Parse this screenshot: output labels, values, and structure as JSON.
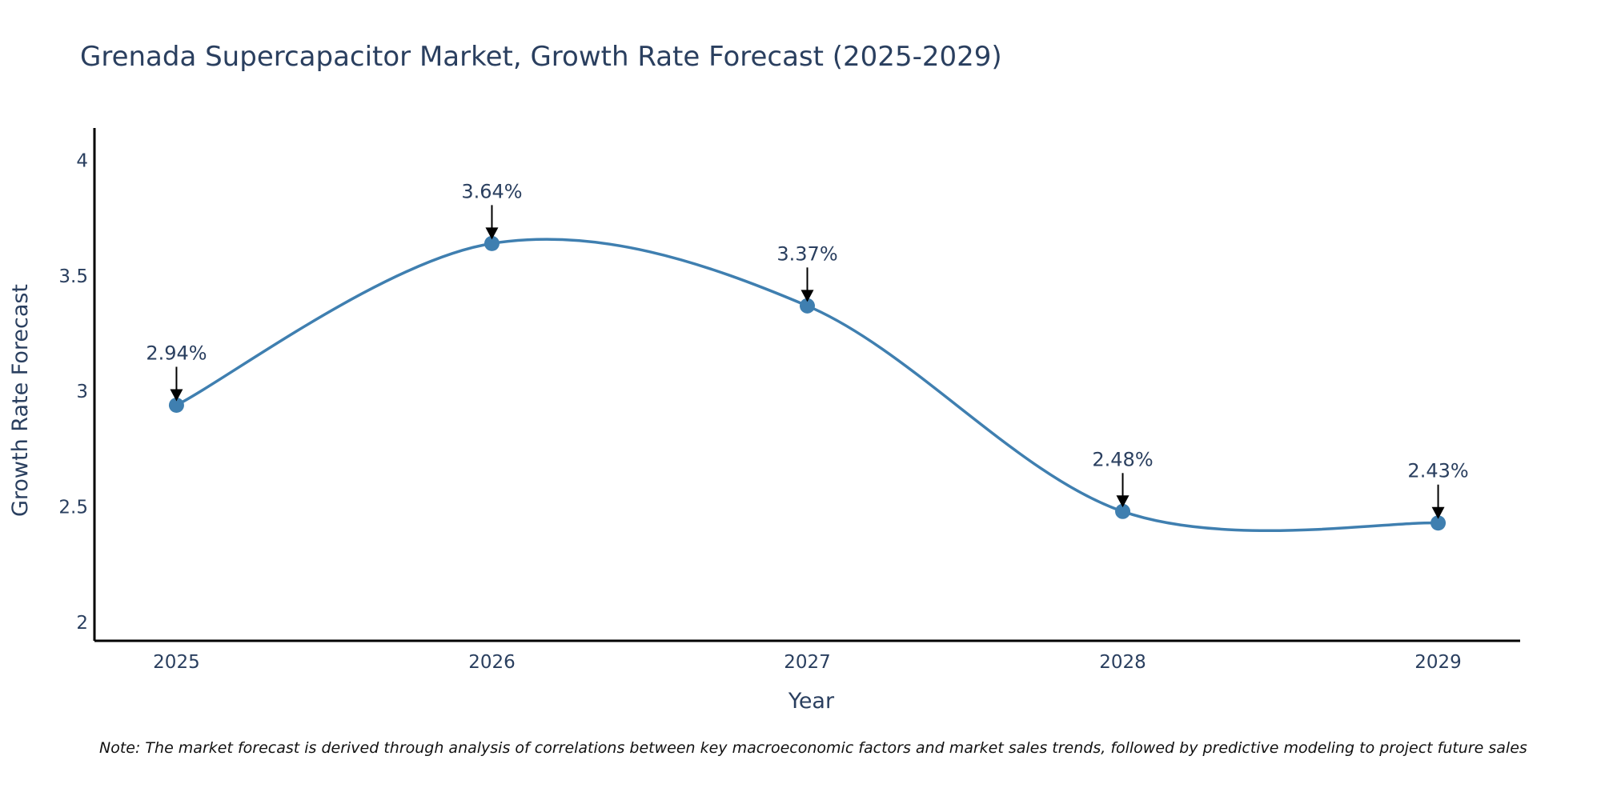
{
  "chart_data": {
    "type": "line",
    "title": "Grenada Supercapacitor Market, Growth Rate Forecast (2025-2029)",
    "xlabel": "Year",
    "ylabel": "Growth Rate Forecast",
    "categories": [
      "2025",
      "2026",
      "2027",
      "2028",
      "2029"
    ],
    "x": [
      2025,
      2026,
      2027,
      2028,
      2029
    ],
    "series": [
      {
        "name": "Growth Rate Forecast",
        "values": [
          2.94,
          3.64,
          3.37,
          2.48,
          2.43
        ],
        "labels": [
          "2.94%",
          "3.64%",
          "3.37%",
          "2.48%",
          "2.43%"
        ],
        "color": "#3f7fb0",
        "line_shape": "spline",
        "markers": true
      }
    ],
    "yticks": [
      2,
      2.5,
      3,
      3.5,
      4
    ],
    "ytick_labels": [
      "2",
      "2.5",
      "3",
      "3.5",
      "4"
    ],
    "xticks": [
      2025,
      2026,
      2027,
      2028,
      2029
    ],
    "xtick_labels": [
      "2025",
      "2026",
      "2027",
      "2028",
      "2029"
    ],
    "ylim": [
      1.92,
      4.14
    ],
    "xlim": [
      2024.74,
      2029.26
    ],
    "grid": false,
    "legend": "none",
    "annotations": [
      "2.94%",
      "3.64%",
      "3.37%",
      "2.48%",
      "2.43%"
    ],
    "note": "Note: The market forecast is derived through analysis of correlations between key macroeconomic factors and market sales trends, followed by predictive modeling to project future sales"
  },
  "colors": {
    "line": "#3f7fb0",
    "marker": "#3f7fb0",
    "text": "#2a3f5f",
    "axis": "#000000",
    "arrow": "#000000"
  }
}
